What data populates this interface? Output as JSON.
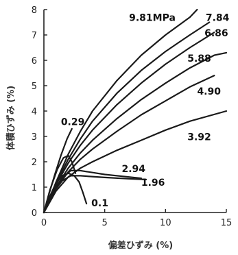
{
  "chart_data": {
    "type": "line",
    "title": "",
    "xlabel": "偏差ひずみ (%)",
    "ylabel": "体積ひずみ (%)",
    "xlim": [
      0,
      15
    ],
    "ylim": [
      0,
      8
    ],
    "x_ticks": [
      "0",
      "5",
      "10",
      "15"
    ],
    "y_ticks": [
      "0",
      "1",
      "2",
      "3",
      "4",
      "5",
      "6",
      "7",
      "8"
    ],
    "grid": false,
    "series": [
      {
        "name": "9.81MPa",
        "points": [
          [
            0,
            0
          ],
          [
            1,
            1.2
          ],
          [
            2,
            2.3
          ],
          [
            3,
            3.2
          ],
          [
            4,
            4.0
          ],
          [
            6,
            5.2
          ],
          [
            8,
            6.2
          ],
          [
            10,
            7.0
          ],
          [
            12,
            7.7
          ],
          [
            12.6,
            8.0
          ]
        ]
      },
      {
        "name": "7.84",
        "points": [
          [
            0,
            0
          ],
          [
            1,
            1.15
          ],
          [
            2,
            2.1
          ],
          [
            3,
            2.9
          ],
          [
            4,
            3.6
          ],
          [
            6,
            4.7
          ],
          [
            8,
            5.6
          ],
          [
            10,
            6.35
          ],
          [
            12,
            7.0
          ],
          [
            13.6,
            7.5
          ]
        ]
      },
      {
        "name": "6.86",
        "points": [
          [
            0,
            0
          ],
          [
            1,
            1.1
          ],
          [
            2,
            1.95
          ],
          [
            3,
            2.65
          ],
          [
            4,
            3.25
          ],
          [
            6,
            4.25
          ],
          [
            8,
            5.1
          ],
          [
            10,
            5.85
          ],
          [
            12,
            6.5
          ],
          [
            14,
            7.1
          ]
        ]
      },
      {
        "name": "5.88",
        "points": [
          [
            0,
            0
          ],
          [
            1,
            1.0
          ],
          [
            2,
            1.75
          ],
          [
            3,
            2.35
          ],
          [
            4,
            2.85
          ],
          [
            6,
            3.7
          ],
          [
            8,
            4.45
          ],
          [
            10,
            5.1
          ],
          [
            12,
            5.7
          ],
          [
            14,
            6.2
          ],
          [
            15,
            6.3
          ]
        ]
      },
      {
        "name": "4.90",
        "points": [
          [
            0,
            0
          ],
          [
            1,
            0.95
          ],
          [
            2,
            1.6
          ],
          [
            3,
            2.1
          ],
          [
            4,
            2.5
          ],
          [
            6,
            3.2
          ],
          [
            8,
            3.85
          ],
          [
            10,
            4.4
          ],
          [
            12,
            4.95
          ],
          [
            14,
            5.4
          ]
        ]
      },
      {
        "name": "3.92",
        "points": [
          [
            0,
            0
          ],
          [
            1,
            0.85
          ],
          [
            2,
            1.4
          ],
          [
            3,
            1.75
          ],
          [
            4,
            2.0
          ],
          [
            6,
            2.45
          ],
          [
            8,
            2.85
          ],
          [
            10,
            3.25
          ],
          [
            12,
            3.6
          ],
          [
            15,
            4.0
          ]
        ]
      },
      {
        "name": "2.94",
        "points": [
          [
            0,
            0
          ],
          [
            0.7,
            0.8
          ],
          [
            1.5,
            1.35
          ],
          [
            2.2,
            1.65
          ],
          [
            3,
            1.65
          ],
          [
            5,
            1.5
          ],
          [
            7,
            1.4
          ],
          [
            8,
            1.35
          ]
        ]
      },
      {
        "name": "1.96",
        "points": [
          [
            0,
            0
          ],
          [
            0.7,
            0.75
          ],
          [
            1.5,
            1.25
          ],
          [
            2.2,
            1.45
          ],
          [
            3,
            1.45
          ],
          [
            5,
            1.38
          ],
          [
            7,
            1.33
          ],
          [
            8.4,
            1.3
          ]
        ]
      },
      {
        "name": "0.29",
        "points": [
          [
            0,
            0
          ],
          [
            0.4,
            0.7
          ],
          [
            0.9,
            1.5
          ],
          [
            1.4,
            2.25
          ],
          [
            1.9,
            2.9
          ],
          [
            2.3,
            3.3
          ]
        ]
      },
      {
        "name": "0.1",
        "points": [
          [
            0,
            0
          ],
          [
            0.5,
            0.65
          ],
          [
            1.0,
            1.15
          ],
          [
            1.5,
            1.45
          ],
          [
            2.0,
            1.55
          ],
          [
            2.5,
            1.45
          ],
          [
            2.9,
            1.2
          ],
          [
            3.2,
            0.8
          ],
          [
            3.5,
            0.35
          ]
        ]
      },
      {
        "name": "",
        "points": [
          [
            0,
            0
          ],
          [
            0.5,
            0.9
          ],
          [
            1.1,
            1.7
          ],
          [
            1.6,
            2.15
          ],
          [
            2.0,
            2.25
          ],
          [
            2.3,
            2.0
          ],
          [
            2.6,
            1.55
          ]
        ]
      }
    ],
    "annotations": [
      {
        "text": "9.81MPa",
        "x": 7.0,
        "y": 7.55
      },
      {
        "text": "7.84",
        "x": 13.3,
        "y": 7.55
      },
      {
        "text": "6.86",
        "x": 13.2,
        "y": 6.95
      },
      {
        "text": "5.88",
        "x": 11.8,
        "y": 5.95
      },
      {
        "text": "4.90",
        "x": 12.6,
        "y": 4.65
      },
      {
        "text": "3.92",
        "x": 11.8,
        "y": 2.85
      },
      {
        "text": "2.94",
        "x": 6.4,
        "y": 1.6
      },
      {
        "text": "1.96",
        "x": 8.0,
        "y": 1.05
      },
      {
        "text": "0.29",
        "x": 1.4,
        "y": 3.45
      },
      {
        "text": "0.1",
        "x": 3.9,
        "y": 0.25
      }
    ]
  }
}
